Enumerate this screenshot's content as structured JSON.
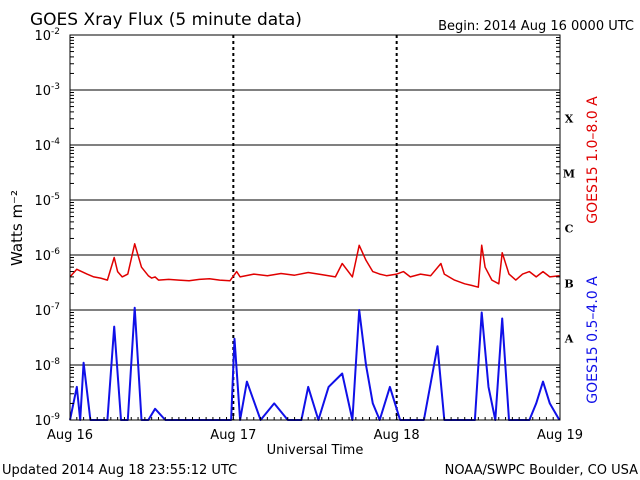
{
  "title": "GOES Xray Flux (5 minute data)",
  "begin": "Begin:  2014 Aug 16 0000 UTC",
  "updated": "Updated 2014 Aug 18 23:55:12 UTC",
  "credit": "NOAA/SWPC Boulder, CO USA",
  "chart_data": {
    "type": "line",
    "title": "GOES Xray Flux (5 minute data)",
    "xlabel": "Universal Time",
    "ylabel": "Watts m⁻²",
    "y_scale": "log",
    "ylim": [
      1e-09,
      0.01
    ],
    "xlim": [
      "2014-08-16 00:00",
      "2014-08-19 00:00"
    ],
    "x_ticks": [
      "Aug 16",
      "Aug 17",
      "Aug 18",
      "Aug 19"
    ],
    "y_tick_exponents": [
      -9,
      -8,
      -7,
      -6,
      -5,
      -4,
      -3,
      -2
    ],
    "flare_classes": [
      "A",
      "B",
      "C",
      "M",
      "X"
    ],
    "grid": true,
    "colors": {
      "long": "#e00000",
      "short": "#1010e8"
    },
    "series": [
      {
        "name": "GOES15 1.0–8.0 A",
        "color": "#e00000",
        "x": [
          "2014-08-16 00:00",
          "2014-08-16 01:00",
          "2014-08-16 02:30",
          "2014-08-16 03:30",
          "2014-08-16 04:30",
          "2014-08-16 05:30",
          "2014-08-16 06:30",
          "2014-08-16 07:00",
          "2014-08-16 07:40",
          "2014-08-16 08:30",
          "2014-08-16 09:30",
          "2014-08-16 10:30",
          "2014-08-16 11:30",
          "2014-08-16 12:00",
          "2014-08-16 12:30",
          "2014-08-16 13:00",
          "2014-08-16 14:30",
          "2014-08-16 16:00",
          "2014-08-16 17:30",
          "2014-08-16 19:00",
          "2014-08-16 20:30",
          "2014-08-16 22:00",
          "2014-08-16 23:30",
          "2014-08-17 00:30",
          "2014-08-17 01:00",
          "2014-08-17 03:00",
          "2014-08-17 05:00",
          "2014-08-17 07:00",
          "2014-08-17 09:00",
          "2014-08-17 11:00",
          "2014-08-17 13:00",
          "2014-08-17 15:00",
          "2014-08-17 16:00",
          "2014-08-17 17:30",
          "2014-08-17 18:30",
          "2014-08-17 19:30",
          "2014-08-17 20:30",
          "2014-08-17 21:30",
          "2014-08-17 22:30",
          "2014-08-18 00:00",
          "2014-08-18 01:00",
          "2014-08-18 02:00",
          "2014-08-18 03:30",
          "2014-08-18 05:00",
          "2014-08-18 06:30",
          "2014-08-18 07:00",
          "2014-08-18 08:30",
          "2014-08-18 10:00",
          "2014-08-18 11:00",
          "2014-08-18 12:00",
          "2014-08-18 12:30",
          "2014-08-18 13:00",
          "2014-08-18 14:00",
          "2014-08-18 15:00",
          "2014-08-18 15:30",
          "2014-08-18 16:30",
          "2014-08-18 17:30",
          "2014-08-18 18:30",
          "2014-08-18 19:30",
          "2014-08-18 20:30",
          "2014-08-18 21:30",
          "2014-08-18 22:30",
          "2014-08-18 23:55"
        ],
        "values": [
          4e-07,
          5.5e-07,
          4.5e-07,
          4e-07,
          3.8e-07,
          3.5e-07,
          9e-07,
          5e-07,
          4e-07,
          4.5e-07,
          1.6e-06,
          6e-07,
          4.2e-07,
          3.8e-07,
          4e-07,
          3.5e-07,
          3.6e-07,
          3.5e-07,
          3.4e-07,
          3.6e-07,
          3.7e-07,
          3.5e-07,
          3.4e-07,
          5e-07,
          4e-07,
          4.5e-07,
          4.2e-07,
          4.6e-07,
          4.3e-07,
          4.8e-07,
          4.4e-07,
          4e-07,
          7e-07,
          4e-07,
          1.5e-06,
          8e-07,
          5e-07,
          4.5e-07,
          4.2e-07,
          4.5e-07,
          5e-07,
          4e-07,
          4.5e-07,
          4.2e-07,
          7e-07,
          4.5e-07,
          3.5e-07,
          3e-07,
          2.8e-07,
          2.6e-07,
          1.5e-06,
          6e-07,
          3.5e-07,
          3e-07,
          1.1e-06,
          4.5e-07,
          3.5e-07,
          4.5e-07,
          5e-07,
          4e-07,
          5e-07,
          4e-07,
          4.2e-07
        ]
      },
      {
        "name": "GOES15 0.5–4.0 A",
        "color": "#1010e8",
        "x": [
          "2014-08-16 00:00",
          "2014-08-16 01:00",
          "2014-08-16 01:30",
          "2014-08-16 02:00",
          "2014-08-16 03:00",
          "2014-08-16 04:00",
          "2014-08-16 05:30",
          "2014-08-16 06:30",
          "2014-08-16 07:30",
          "2014-08-16 08:30",
          "2014-08-16 09:30",
          "2014-08-16 10:30",
          "2014-08-16 11:30",
          "2014-08-16 12:30",
          "2014-08-16 14:00",
          "2014-08-16 16:00",
          "2014-08-16 18:00",
          "2014-08-16 20:00",
          "2014-08-16 22:00",
          "2014-08-16 23:40",
          "2014-08-17 00:10",
          "2014-08-17 01:00",
          "2014-08-17 02:00",
          "2014-08-17 04:00",
          "2014-08-17 06:00",
          "2014-08-17 08:00",
          "2014-08-17 10:00",
          "2014-08-17 11:00",
          "2014-08-17 12:30",
          "2014-08-17 14:00",
          "2014-08-17 16:00",
          "2014-08-17 17:30",
          "2014-08-17 18:30",
          "2014-08-17 19:30",
          "2014-08-17 20:30",
          "2014-08-17 21:30",
          "2014-08-17 23:00",
          "2014-08-18 00:30",
          "2014-08-18 02:00",
          "2014-08-18 04:00",
          "2014-08-18 06:00",
          "2014-08-18 07:00",
          "2014-08-18 08:30",
          "2014-08-18 10:00",
          "2014-08-18 11:30",
          "2014-08-18 12:30",
          "2014-08-18 13:30",
          "2014-08-18 14:30",
          "2014-08-18 15:30",
          "2014-08-18 16:30",
          "2014-08-18 18:00",
          "2014-08-18 19:30",
          "2014-08-18 20:30",
          "2014-08-18 21:30",
          "2014-08-18 22:30",
          "2014-08-18 23:55"
        ],
        "values": [
          1e-09,
          4e-09,
          1e-09,
          1.1e-08,
          1e-09,
          1e-09,
          1e-09,
          5e-08,
          1e-09,
          1e-09,
          1.1e-07,
          1e-09,
          1e-09,
          1.6e-09,
          1e-09,
          1e-09,
          1e-09,
          1e-09,
          1e-09,
          1e-09,
          3e-08,
          1e-09,
          5e-09,
          1e-09,
          2e-09,
          1e-09,
          1e-09,
          4e-09,
          1e-09,
          4e-09,
          7e-09,
          1e-09,
          1e-07,
          1e-08,
          2e-09,
          1e-09,
          4e-09,
          1e-09,
          1e-09,
          1e-09,
          2.2e-08,
          1e-09,
          1e-09,
          1e-09,
          1e-09,
          9e-08,
          4e-09,
          1e-09,
          7e-08,
          1e-09,
          1e-09,
          1e-09,
          2e-09,
          5e-09,
          2e-09,
          1e-09
        ]
      }
    ]
  }
}
